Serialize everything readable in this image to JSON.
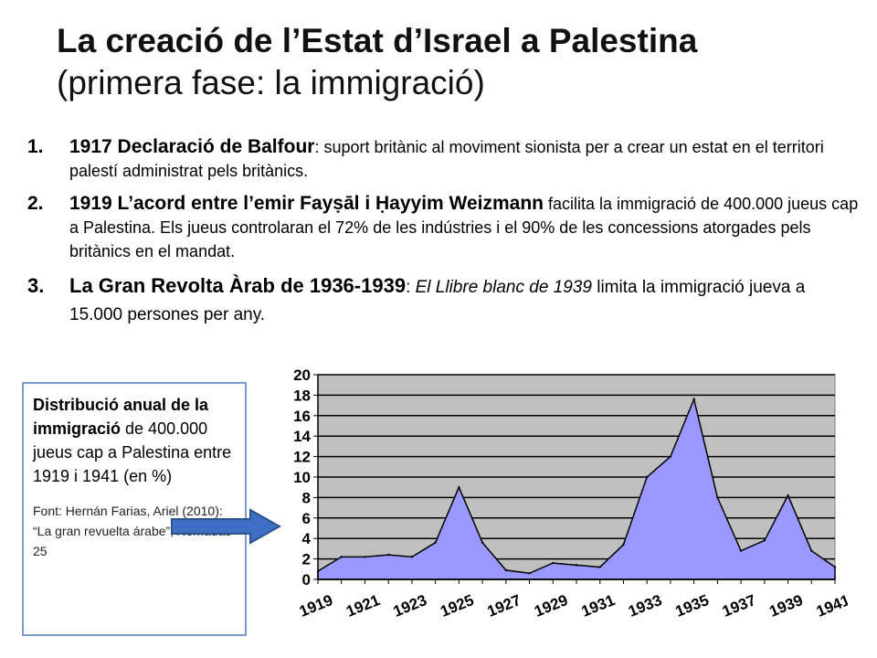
{
  "title": {
    "line1": "La creació de l’Estat d’Israel a Palestina",
    "line2": "(primera fase: la immigració)"
  },
  "points": [
    {
      "num": "1.",
      "bold": "1917 Declaració de Balfour",
      "rest": ": suport britànic al moviment sionista per a crear un estat en el territori palestí administrat pels britànics."
    },
    {
      "num": "2.",
      "bold": "1919 L’acord entre l’emir Fayṣāl i Ḥayyim Weizmann",
      "rest": " facilita la immigració de 400.000 jueus cap a Palestina. Els jueus controlaran el 72% de les indústries i el 90% de les concessions atorgades pels britànics en el mandat."
    },
    {
      "num": "3.",
      "bold": "La Gran Revolta Àrab de 1936-1939",
      "rest_a": ": ",
      "italic": "El Llibre blanc de 1939",
      "rest_b": " limita la immigració jueva a 15.000 persones per any."
    }
  ],
  "side_box": {
    "bold": "Distribució anual de la immigració",
    "rest": " de 400.000 jueus cap a Palestina entre 1919 i 1941 (en %)",
    "source_prefix": "Font: Hernán Farias, Ariel (2010): “La gran revuelta árabe”, ",
    "source_italic": "Nómadas",
    "source_suffix": " 25"
  },
  "colors": {
    "area_fill": "#9999ff",
    "plot_bg": "#c0c0c0",
    "arrow": "#3d6fc5",
    "box_border": "#7a9cc7"
  },
  "chart_data": {
    "type": "area",
    "x": [
      1919,
      1920,
      1921,
      1922,
      1923,
      1924,
      1925,
      1926,
      1927,
      1928,
      1929,
      1930,
      1931,
      1932,
      1933,
      1934,
      1935,
      1936,
      1937,
      1938,
      1939,
      1940,
      1941
    ],
    "values": [
      0.8,
      2.2,
      2.2,
      2.4,
      2.2,
      3.6,
      9.0,
      3.6,
      0.9,
      0.6,
      1.6,
      1.4,
      1.2,
      3.4,
      10.0,
      12.0,
      17.6,
      8.0,
      2.8,
      3.8,
      8.2,
      2.8,
      1.2
    ],
    "x_tick_labels": [
      "1919",
      "1921",
      "1923",
      "1925",
      "1927",
      "1929",
      "1931",
      "1933",
      "1935",
      "1937",
      "1939",
      "1941"
    ],
    "y_tick_labels": [
      "0",
      "2",
      "4",
      "6",
      "8",
      "10",
      "12",
      "14",
      "16",
      "18",
      "20"
    ],
    "ylim": [
      0,
      20
    ],
    "grid": "horizontal",
    "legend": "none"
  }
}
